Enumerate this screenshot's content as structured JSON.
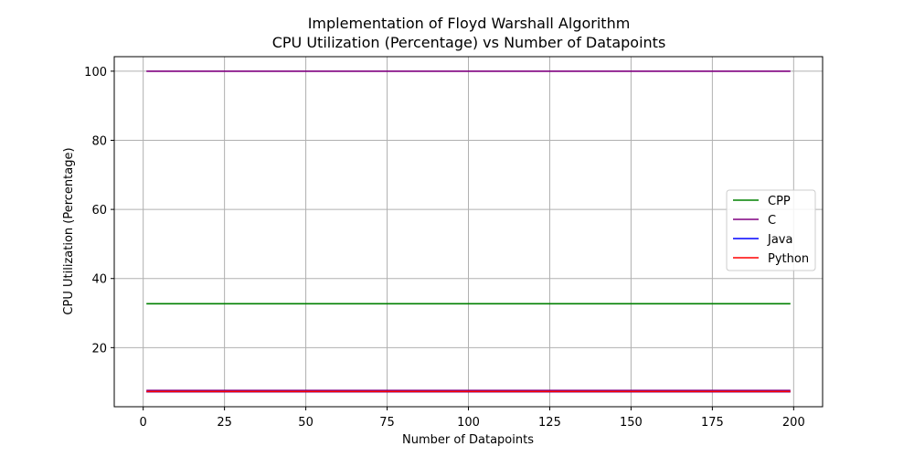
{
  "chart_data": {
    "type": "line",
    "title": "Implementation of Floyd Warshall Algorithm",
    "subtitle": "CPU Utilization (Percentage) vs Number of Datapoints",
    "xlabel": "Number of Datapoints",
    "ylabel": "CPU Utilization (Percentage)",
    "xlim": [
      -8.9,
      208.9
    ],
    "ylim": [
      2.9,
      104.2
    ],
    "xticks": [
      0,
      25,
      50,
      75,
      100,
      125,
      150,
      175,
      200
    ],
    "yticks": [
      20,
      40,
      60,
      80,
      100
    ],
    "grid": true,
    "legend_position": "center-right",
    "x": [
      1,
      199
    ],
    "series": [
      {
        "name": "CPP",
        "color": "#008000",
        "values": [
          32.7,
          32.7
        ]
      },
      {
        "name": "C",
        "color": "#800080",
        "values": [
          100.0,
          100.0
        ],
        "extra_segments": [
          [
            7.6,
            7.6
          ]
        ]
      },
      {
        "name": "Java",
        "color": "#0000ff",
        "values": [
          7.2,
          7.2
        ]
      },
      {
        "name": "Python",
        "color": "#ff0000",
        "values": [
          7.3,
          7.3
        ]
      }
    ]
  }
}
